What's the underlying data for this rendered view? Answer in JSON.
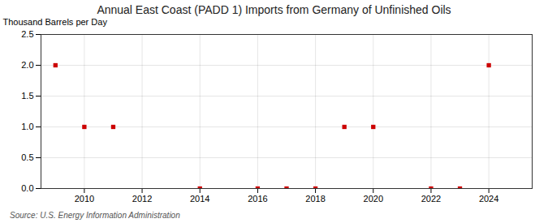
{
  "chart_data": {
    "type": "scatter",
    "title": "Annual East Coast (PADD 1) Imports from Germany of Unfinished Oils",
    "ylabel": "Thousand Barrels per Day",
    "source": "Source: U.S. Energy Information Administration",
    "x": [
      2009,
      2010,
      2011,
      2014,
      2016,
      2017,
      2018,
      2019,
      2020,
      2022,
      2023,
      2024
    ],
    "values": [
      2.0,
      1.0,
      1.0,
      0.0,
      0.0,
      0.0,
      0.0,
      1.0,
      1.0,
      0.0,
      0.0,
      2.0
    ],
    "color": "#cc0000",
    "marker": "square",
    "xlim": [
      2008.5,
      2025.5
    ],
    "xticks": [
      2010,
      2012,
      2014,
      2016,
      2018,
      2020,
      2022,
      2024
    ],
    "ylim": [
      0,
      2.5
    ],
    "yticks": [
      {
        "value": 0.0,
        "label": "0.0"
      },
      0.5,
      {
        "value": 1.0,
        "label": "1.0"
      },
      1.5,
      {
        "value": 2.0,
        "label": "2.0"
      },
      2.5
    ],
    "grid": true
  }
}
